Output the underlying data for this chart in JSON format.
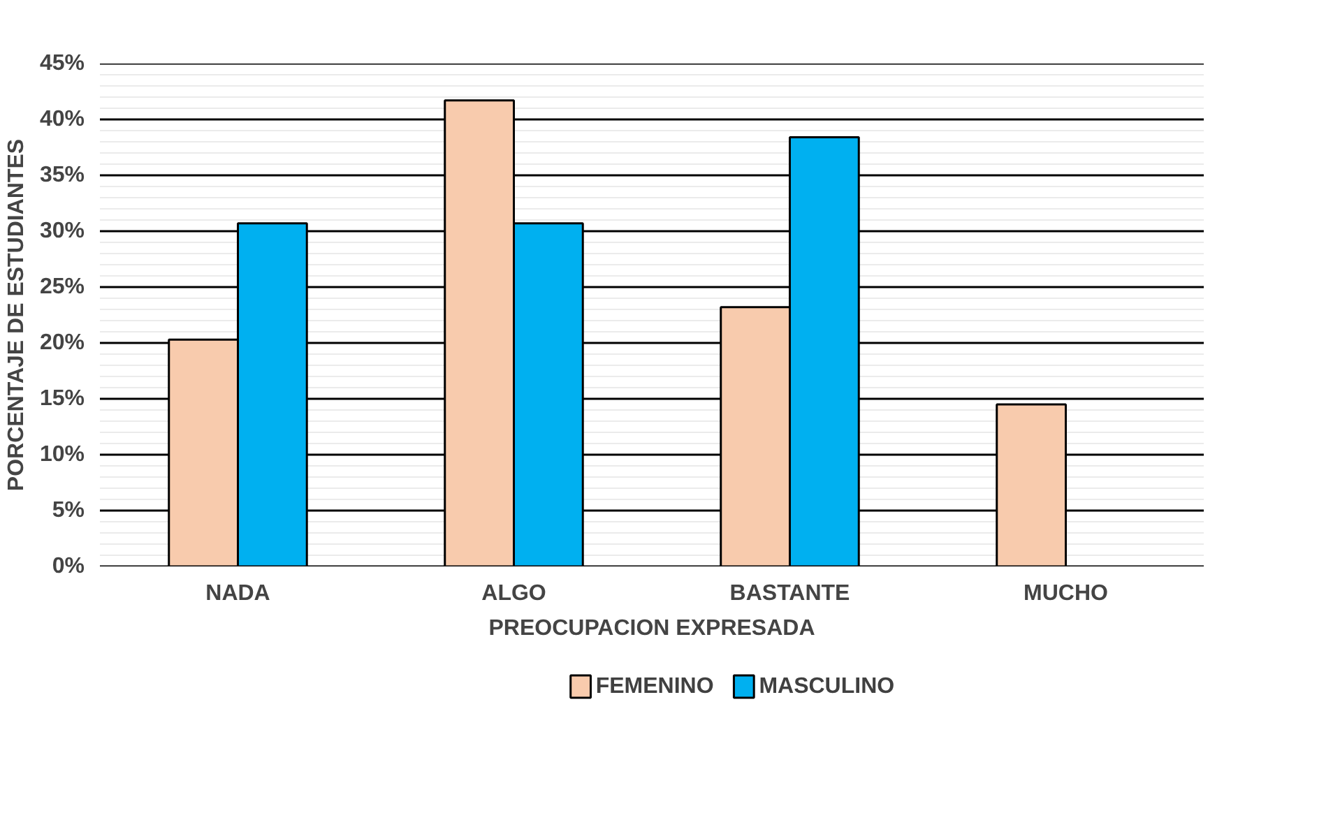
{
  "chart_data": {
    "type": "bar",
    "xlabel": "PREOCUPACION EXPRESADA",
    "ylabel": "PORCENTAJE DE ESTUDIANTES",
    "categories": [
      "NADA",
      "ALGO",
      "BASTANTE",
      "MUCHO"
    ],
    "series": [
      {
        "name": "FEMENINO",
        "color": "#f8cbad",
        "values": [
          20.3,
          41.7,
          23.2,
          14.5
        ]
      },
      {
        "name": "MASCULINO",
        "color": "#00b0f0",
        "values": [
          30.7,
          30.7,
          38.4,
          null
        ]
      }
    ],
    "ylim": [
      0,
      45
    ],
    "yticks": [
      {
        "value": 0,
        "label": "0%"
      },
      {
        "value": 5,
        "label": "5%"
      },
      {
        "value": 10,
        "label": "10%"
      },
      {
        "value": 15,
        "label": "15%"
      },
      {
        "value": 20,
        "label": "20%"
      },
      {
        "value": 25,
        "label": "25%"
      },
      {
        "value": 30,
        "label": "30%"
      },
      {
        "value": 35,
        "label": "35%"
      },
      {
        "value": 40,
        "label": "40%"
      },
      {
        "value": 45,
        "label": "45%"
      }
    ],
    "grid": "y",
    "legend": "bottom"
  }
}
